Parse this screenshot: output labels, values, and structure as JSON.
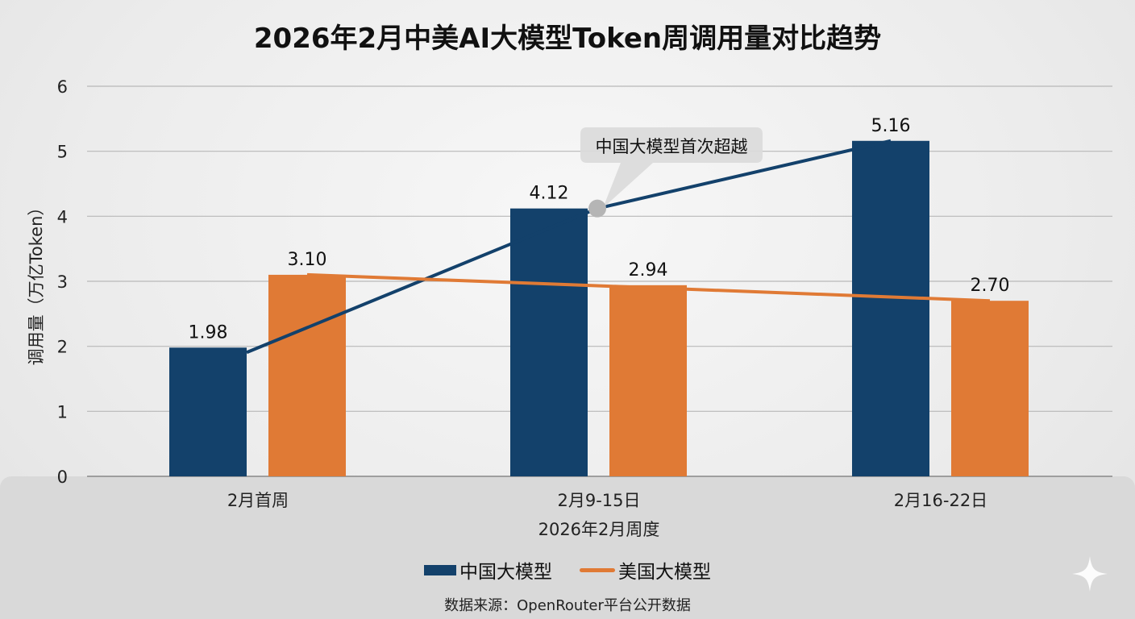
{
  "title": "2026年2月中美AI大模型Token周调用量对比趋势",
  "footer": "数据来源：OpenRouter平台公开数据",
  "colors": {
    "china": "#13416b",
    "us": "#e07a35",
    "annotation_bg": "#dadada"
  },
  "chart_data": {
    "type": "bar",
    "overlay": "line",
    "title": "2026年2月中美AI大模型Token周调用量对比趋势",
    "xlabel": "2026年2月周度",
    "ylabel": "调用量（万亿Token）",
    "categories": [
      "2月首周",
      "2月9-15日",
      "2月16-22日"
    ],
    "ylim": [
      0,
      6
    ],
    "yticks": [
      0,
      1,
      2,
      3,
      4,
      5,
      6
    ],
    "grid": true,
    "legend_placement": "bottom",
    "series": [
      {
        "name": "中国大模型",
        "values": [
          1.98,
          4.12,
          5.16
        ],
        "labels": [
          "1.98",
          "4.12",
          "5.16"
        ],
        "marker": "bar+line"
      },
      {
        "name": "美国大模型",
        "values": [
          3.1,
          2.94,
          2.7
        ],
        "labels": [
          "3.10",
          "2.94",
          "2.70"
        ],
        "marker": "bar+line"
      }
    ],
    "annotations": [
      {
        "text": "中国大模型首次超越",
        "category": "2月9-15日",
        "series": "中国大模型"
      }
    ]
  }
}
